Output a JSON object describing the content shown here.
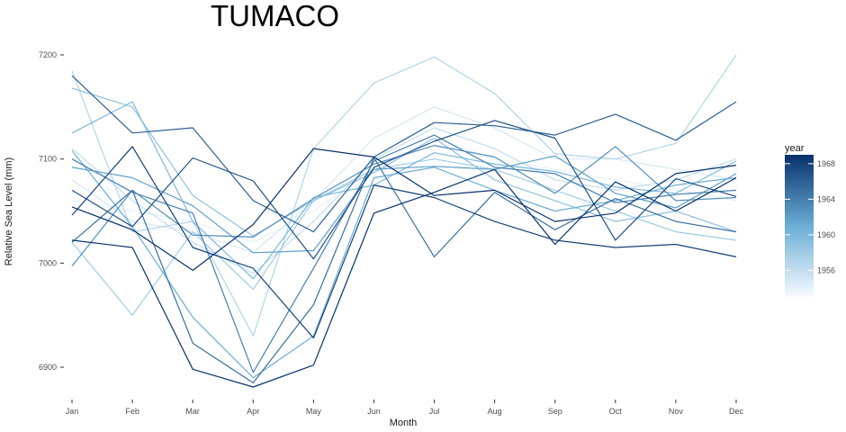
{
  "chart_data": {
    "type": "line",
    "title": "TUMACO",
    "xlabel": "Month",
    "ylabel": "Relative Sea Level (mm)",
    "categories": [
      "Jan",
      "Feb",
      "Mar",
      "Apr",
      "May",
      "Jun",
      "Jul",
      "Aug",
      "Sep",
      "Oct",
      "Nov",
      "Dec"
    ],
    "ylim": [
      6870,
      7205
    ],
    "yticks": [
      6900,
      7000,
      7100,
      7200
    ],
    "grid": false,
    "legend": {
      "title": "year",
      "placement": "right",
      "type": "colorbar",
      "range": [
        1953,
        1969
      ],
      "ticks": [
        1956,
        1960,
        1964,
        1968
      ],
      "color_low": "#f7fbff",
      "color_high": "#08306b"
    },
    "series": [
      {
        "year": 1953,
        "values": [
          7090,
          7060,
          7050,
          7040,
          7060,
          7080,
          7100,
          7080,
          7060,
          7060,
          7050,
          7050
        ]
      },
      {
        "year": 1954,
        "values": [
          7060,
          7050,
          7040,
          7020,
          7050,
          7090,
          7120,
          7100,
          7090,
          7080,
          7070,
          7060
        ]
      },
      {
        "year": 1955,
        "values": [
          7080,
          7040,
          7030,
          7010,
          7060,
          7120,
          7150,
          7130,
          7100,
          7100,
          7090,
          7080
        ]
      },
      {
        "year": 1956,
        "values": [
          7110,
          7060,
          7020,
          6990,
          7040,
          7100,
          7130,
          7110,
          7080,
          7070,
          7080,
          7100
        ]
      },
      {
        "year": 1957,
        "values": [
          7185,
          7030,
          7040,
          6930,
          7110,
          7173,
          7198,
          7163,
          7105,
          7100,
          7115,
          7200
        ]
      },
      {
        "year": 1958,
        "values": [
          7020,
          6950,
          7030,
          6975,
          7060,
          7090,
          7100,
          7090,
          7070,
          7050,
          7030,
          7022
        ]
      },
      {
        "year": 1959,
        "values": [
          7168,
          7150,
          7065,
          7026,
          7060,
          7087,
          7120,
          7080,
          7060,
          7040,
          7050,
          7030
        ]
      },
      {
        "year": 1960,
        "values": [
          7125,
          7155,
          7040,
          6985,
          7063,
          7075,
          7106,
          7095,
          7088,
          7073,
          7067,
          7098
        ]
      },
      {
        "year": 1961,
        "values": [
          7108,
          7035,
          6948,
          6890,
          6930,
          7082,
          7092,
          7070,
          7050,
          7060,
          7075,
          7082
        ]
      },
      {
        "year": 1962,
        "values": [
          7092,
          7082,
          7055,
          7010,
          7012,
          7090,
          7093,
          7090,
          7103,
          7067,
          7053,
          7086
        ]
      },
      {
        "year": 1963,
        "values": [
          6997,
          7070,
          7027,
          7025,
          7062,
          7095,
          7113,
          7102,
          7067,
          7112,
          7060,
          7063
        ]
      },
      {
        "year": 1964,
        "values": [
          7100,
          7068,
          7048,
          6895,
          6995,
          7098,
          7123,
          7092,
          7086,
          7058,
          7066,
          7070
        ]
      },
      {
        "year": 1965,
        "values": [
          7020,
          7070,
          6923,
          6885,
          6960,
          7101,
          7006,
          7068,
          7032,
          7062,
          7040,
          7030
        ]
      },
      {
        "year": 1966,
        "values": [
          7180,
          7125,
          7130,
          7060,
          7030,
          7102,
          7135,
          7132,
          7123,
          7143,
          7118,
          7155
        ]
      },
      {
        "year": 1967,
        "values": [
          7070,
          7035,
          7101,
          7079,
          7004,
          7092,
          7117,
          7137,
          7120,
          7022,
          7081,
          7064
        ]
      },
      {
        "year": 1968,
        "values": [
          7046,
          7112,
          7015,
          6995,
          6928,
          7075,
          7063,
          7040,
          7022,
          7015,
          7018,
          7006
        ]
      },
      {
        "year": 1969,
        "values": [
          7054,
          7032,
          6993,
          7037,
          7110,
          7102,
          7065,
          7070,
          7040,
          7048,
          7086,
          7094
        ]
      },
      {
        "year": 1969,
        "values": [
          7022,
          7015,
          6898,
          6881,
          6902,
          7048,
          7068,
          7090,
          7018,
          7078,
          7050,
          7082
        ]
      }
    ]
  }
}
